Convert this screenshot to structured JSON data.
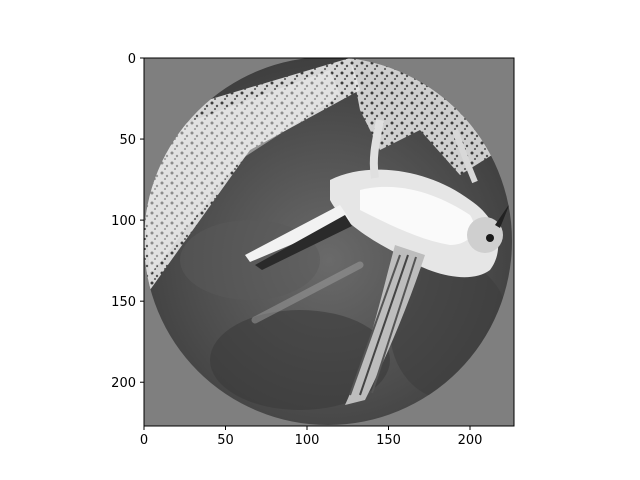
{
  "figure": {
    "image_subject": "grayscale hummingbird in circular mask",
    "colors": {
      "background": "#ffffff",
      "mask_gray": "#7f7f7f",
      "axis": "#000000"
    }
  },
  "chart_data": {
    "type": "image",
    "title": "",
    "xlabel": "",
    "ylabel": "",
    "xlim": [
      0,
      227
    ],
    "ylim": [
      227,
      0
    ],
    "x_ticks": [
      0,
      50,
      100,
      150,
      200
    ],
    "y_ticks": [
      0,
      50,
      100,
      150,
      200
    ],
    "grid": false,
    "legend": "none"
  }
}
